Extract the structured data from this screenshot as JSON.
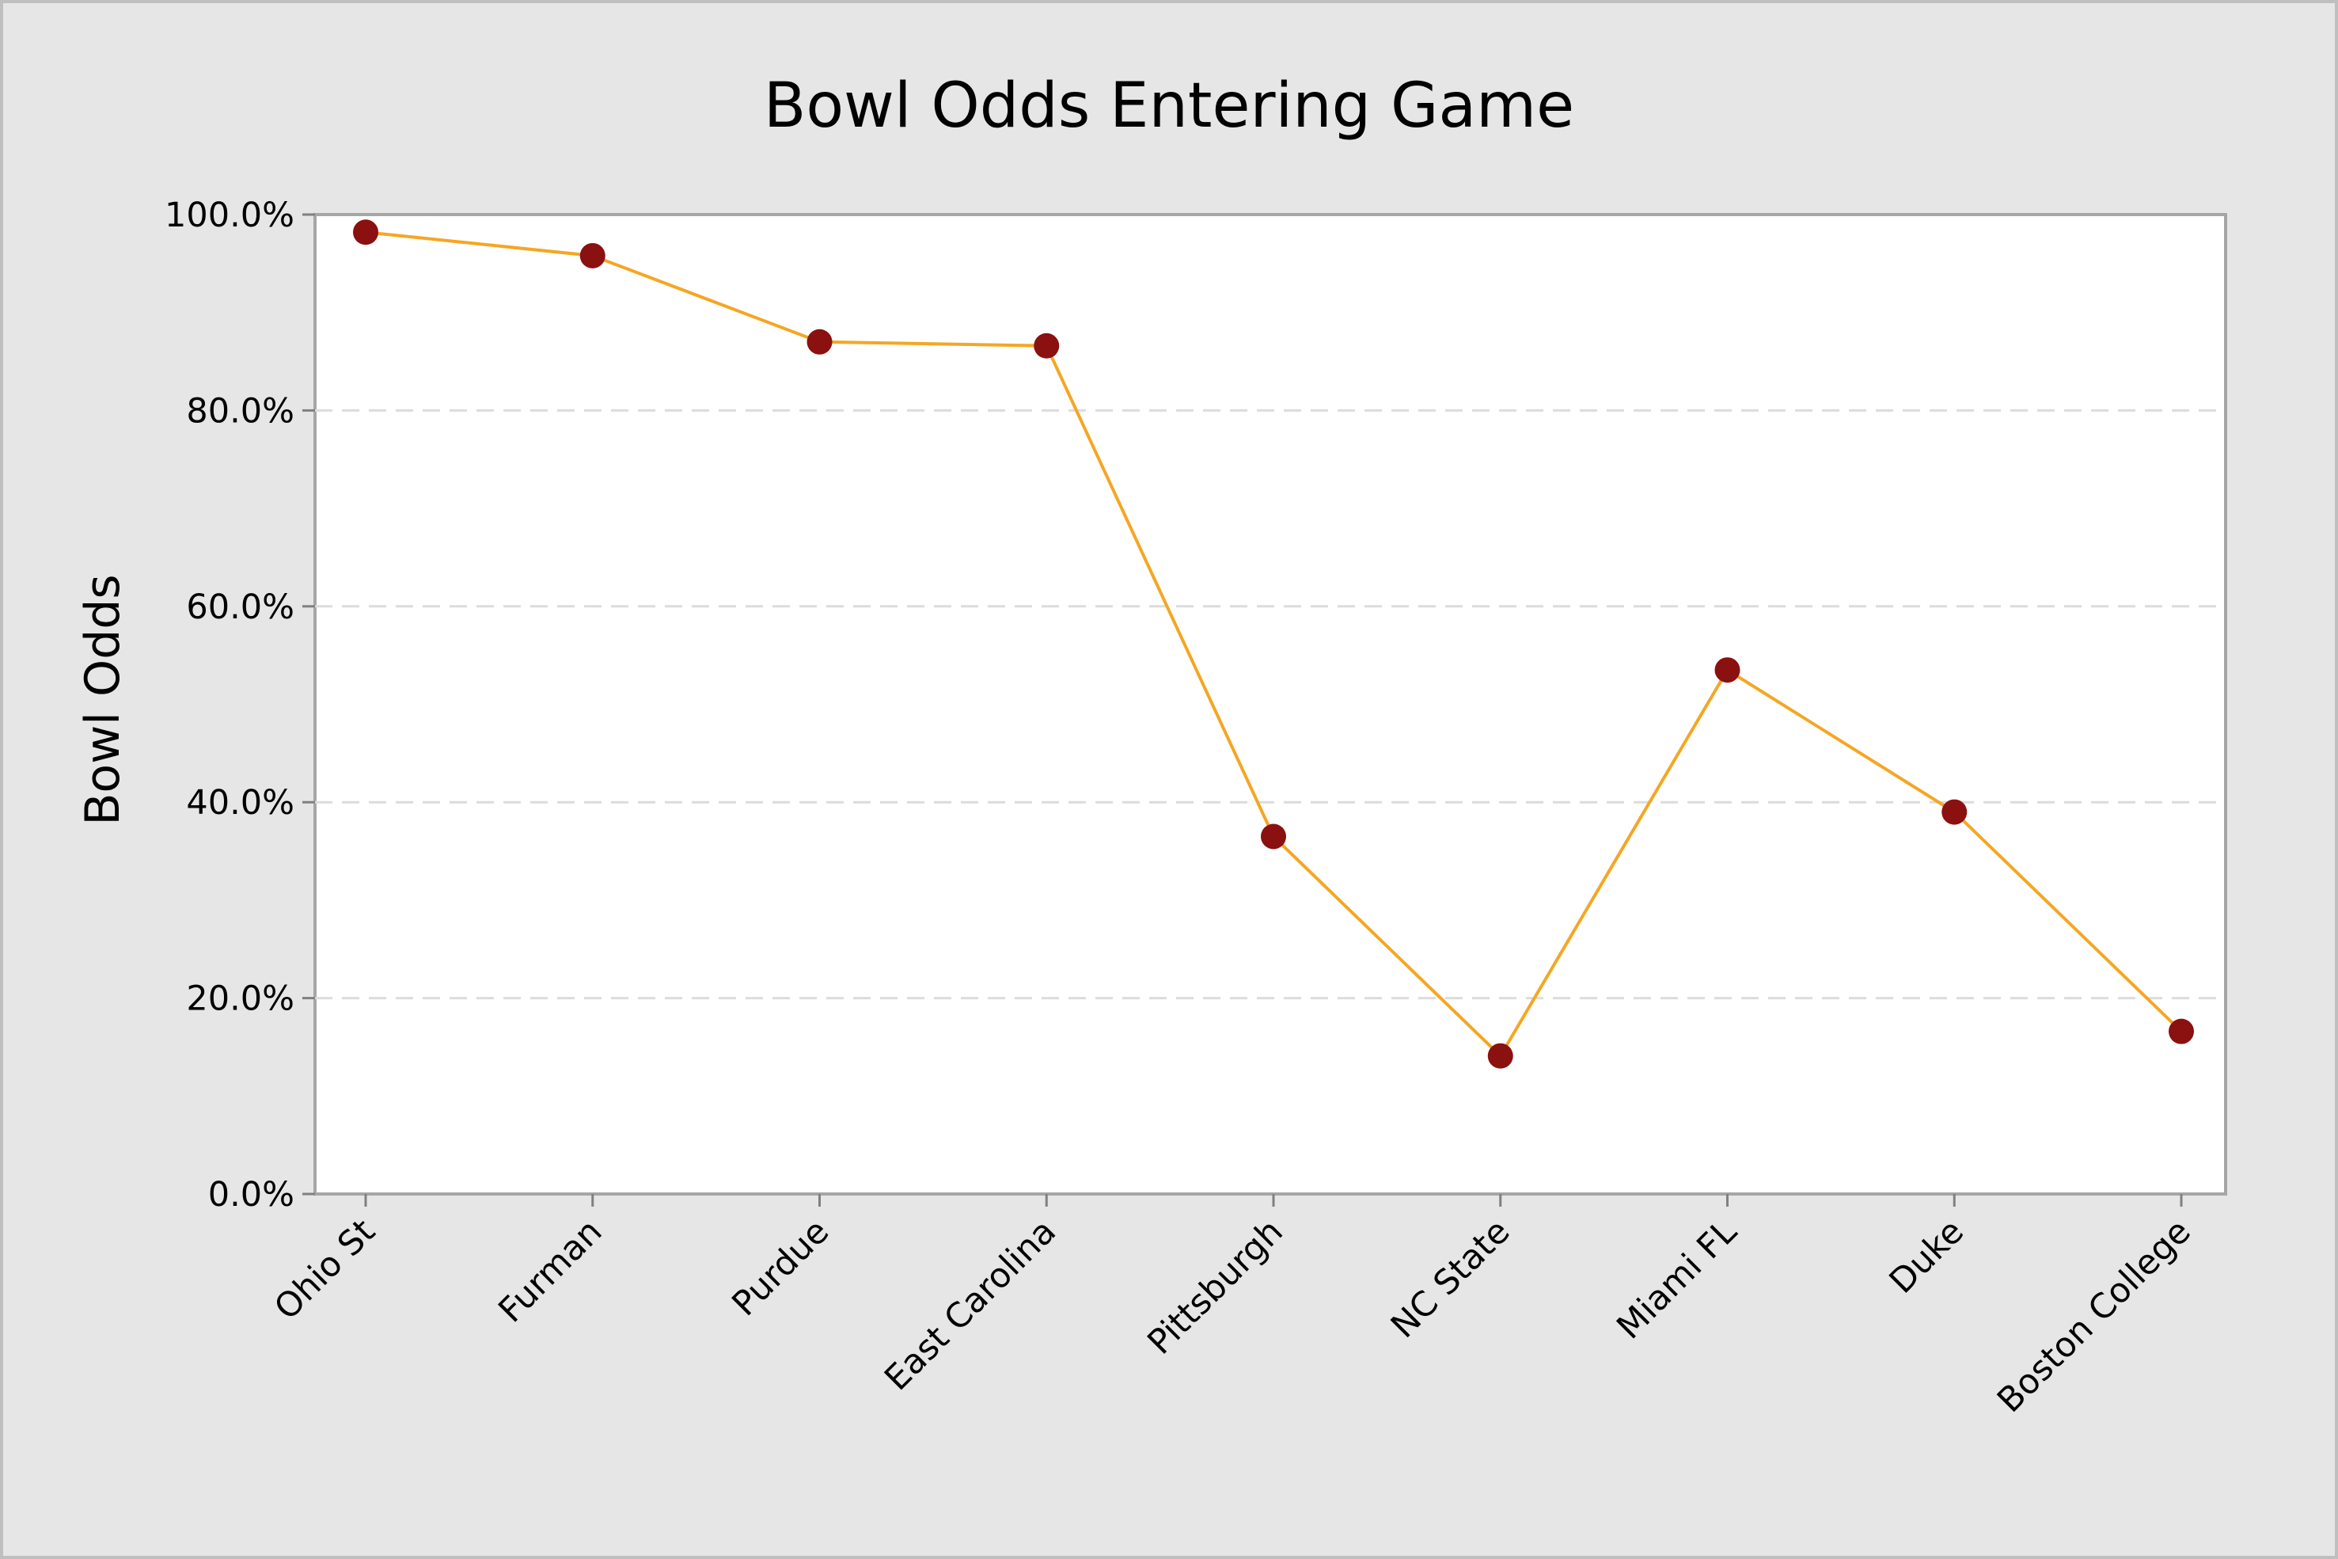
{
  "chart_data": {
    "type": "line",
    "title": "Bowl Odds Entering Game",
    "xlabel": "",
    "ylabel": "Bowl Odds",
    "categories": [
      "Ohio St",
      "Furman",
      "Purdue",
      "East Carolina",
      "Pittsburgh",
      "NC State",
      "Miami FL",
      "Duke",
      "Boston College"
    ],
    "series": [
      {
        "values": [
          98.2,
          95.8,
          87.0,
          86.6,
          36.5,
          14.1,
          53.5,
          39.0,
          16.6
        ]
      }
    ],
    "ylim": [
      0,
      100
    ],
    "yticks": [
      "0.0%",
      "20.0%",
      "40.0%",
      "60.0%",
      "80.0%",
      "100.0%"
    ],
    "ytick_values": [
      0,
      20,
      40,
      60,
      80,
      100
    ],
    "grid": "horizontal dashed",
    "legend": "none",
    "colors": {
      "line": "#f5a623",
      "marker": "#8b1010",
      "background": "#e6e6e6",
      "plot_background": "#ffffff"
    }
  }
}
